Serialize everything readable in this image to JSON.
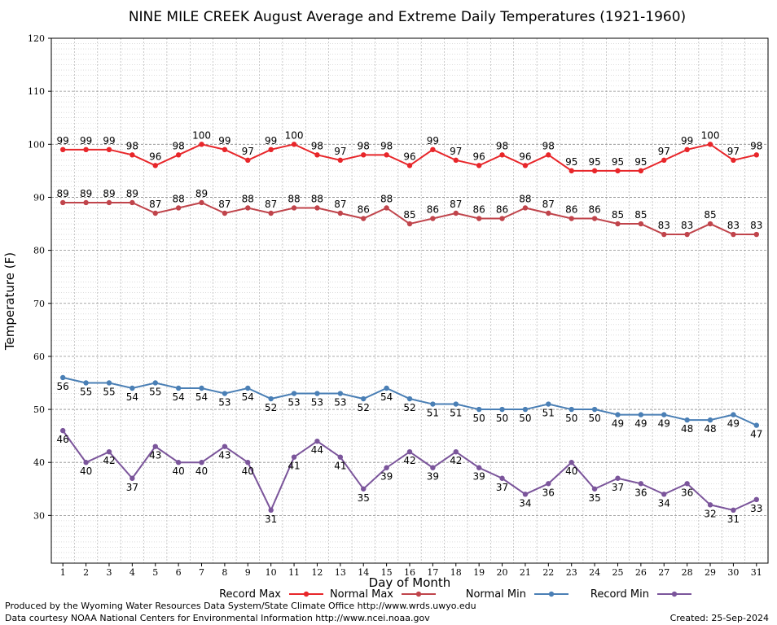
{
  "chart_data": {
    "type": "line",
    "title": "NINE MILE CREEK August Average and Extreme Daily Temperatures (1921-1960)",
    "xlabel": "Day of Month",
    "ylabel": "Temperature (F)",
    "ylim": [
      21,
      120
    ],
    "yticks": [
      30,
      40,
      50,
      60,
      70,
      80,
      90,
      100,
      110,
      120
    ],
    "x": [
      1,
      2,
      3,
      4,
      5,
      6,
      7,
      8,
      9,
      10,
      11,
      12,
      13,
      14,
      15,
      16,
      17,
      18,
      19,
      20,
      21,
      22,
      23,
      24,
      25,
      26,
      27,
      28,
      29,
      30,
      31
    ],
    "grid": true,
    "legend_position": "bottom",
    "series": [
      {
        "name": "Record Max",
        "color": "#e8262a",
        "label_pos": "above",
        "values": [
          99,
          99,
          99,
          98,
          96,
          98,
          100,
          99,
          97,
          99,
          100,
          98,
          97,
          98,
          98,
          96,
          99,
          97,
          96,
          98,
          96,
          98,
          95,
          95,
          95,
          95,
          97,
          99,
          100,
          97,
          98
        ]
      },
      {
        "name": "Normal Max",
        "color": "#c0444b",
        "label_pos": "above",
        "values": [
          89,
          89,
          89,
          89,
          87,
          88,
          89,
          87,
          88,
          87,
          88,
          88,
          87,
          86,
          88,
          85,
          86,
          87,
          86,
          86,
          88,
          87,
          86,
          86,
          85,
          85,
          83,
          83,
          85,
          83,
          83
        ]
      },
      {
        "name": "Normal Min",
        "color": "#4a7fb5",
        "label_pos": "below",
        "values": [
          56,
          55,
          55,
          54,
          55,
          54,
          54,
          53,
          54,
          52,
          53,
          53,
          53,
          52,
          54,
          52,
          51,
          51,
          50,
          50,
          50,
          51,
          50,
          50,
          49,
          49,
          49,
          48,
          48,
          49,
          47
        ]
      },
      {
        "name": "Record Min",
        "color": "#7b559b",
        "label_pos": "below",
        "values": [
          46,
          40,
          42,
          37,
          43,
          40,
          40,
          43,
          40,
          31,
          41,
          44,
          41,
          35,
          39,
          42,
          39,
          42,
          39,
          37,
          34,
          36,
          40,
          35,
          37,
          36,
          34,
          36,
          32,
          31,
          33
        ]
      }
    ]
  },
  "footer": {
    "line1": "Produced by the Wyoming Water Resources Data System/State Climate Office http://www.wrds.uwyo.edu",
    "line2": "Data courtesy NOAA National Centers for Environmental Information http://www.ncei.noaa.gov",
    "created": "Created:  25-Sep-2024"
  }
}
